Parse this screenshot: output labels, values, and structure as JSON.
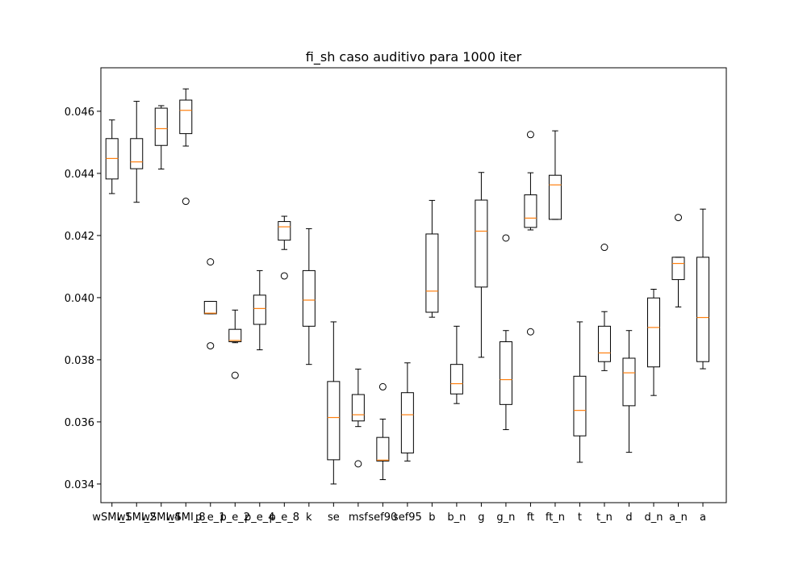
{
  "chart_data": {
    "type": "box",
    "title": "fi_sh caso auditivo para 1000 iter",
    "xlabel": "",
    "ylabel": "",
    "ylim": [
      0.0334,
      0.0474
    ],
    "yticks": [
      "0.034",
      "0.036",
      "0.038",
      "0.040",
      "0.042",
      "0.044",
      "0.046"
    ],
    "grid": false,
    "colors": {
      "box": "#000000",
      "median": "#ff7f0e",
      "whisker": "#000000"
    },
    "boxes": [
      {
        "label": "wSMI_1",
        "whislo": 0.04335,
        "q1": 0.04382,
        "med": 0.04448,
        "q3": 0.04512,
        "whishi": 0.04572,
        "fliers": []
      },
      {
        "label": "wSMI_2",
        "whislo": 0.04307,
        "q1": 0.04415,
        "med": 0.04437,
        "q3": 0.04512,
        "whishi": 0.04632,
        "fliers": []
      },
      {
        "label": "wSMI_4",
        "whislo": 0.04414,
        "q1": 0.0449,
        "med": 0.04544,
        "q3": 0.0461,
        "whishi": 0.04618,
        "fliers": []
      },
      {
        "label": "wSMI_8",
        "whislo": 0.04488,
        "q1": 0.04528,
        "med": 0.04603,
        "q3": 0.04636,
        "whishi": 0.04672,
        "fliers": [
          0.0431
        ]
      },
      {
        "label": "p_e_1",
        "whislo": 0.03948,
        "q1": 0.03948,
        "med": 0.0395,
        "q3": 0.03988,
        "whishi": 0.03988,
        "fliers": [
          0.04115,
          0.03845
        ]
      },
      {
        "label": "p_e_2",
        "whislo": 0.03855,
        "q1": 0.03858,
        "med": 0.03862,
        "q3": 0.03898,
        "whishi": 0.0396,
        "fliers": [
          0.0375
        ]
      },
      {
        "label": "p_e_4",
        "whislo": 0.03832,
        "q1": 0.03914,
        "med": 0.03965,
        "q3": 0.04008,
        "whishi": 0.04087,
        "fliers": []
      },
      {
        "label": "p_e_8",
        "whislo": 0.04155,
        "q1": 0.04185,
        "med": 0.04228,
        "q3": 0.04245,
        "whishi": 0.04262,
        "fliers": [
          0.0407
        ]
      },
      {
        "label": "k",
        "whislo": 0.03785,
        "q1": 0.03908,
        "med": 0.03992,
        "q3": 0.04087,
        "whishi": 0.04222,
        "fliers": []
      },
      {
        "label": "se",
        "whislo": 0.034,
        "q1": 0.03478,
        "med": 0.03614,
        "q3": 0.0373,
        "whishi": 0.03922,
        "fliers": []
      },
      {
        "label": "msf",
        "whislo": 0.03585,
        "q1": 0.03603,
        "med": 0.03623,
        "q3": 0.03688,
        "whishi": 0.0377,
        "fliers": [
          0.03465
        ]
      },
      {
        "label": "sef90",
        "whislo": 0.03414,
        "q1": 0.03474,
        "med": 0.03477,
        "q3": 0.0355,
        "whishi": 0.03609,
        "fliers": [
          0.03713
        ]
      },
      {
        "label": "sef95",
        "whislo": 0.03474,
        "q1": 0.035,
        "med": 0.03623,
        "q3": 0.03694,
        "whishi": 0.0379,
        "fliers": []
      },
      {
        "label": "b",
        "whislo": 0.03937,
        "q1": 0.03953,
        "med": 0.04021,
        "q3": 0.04205,
        "whishi": 0.04313,
        "fliers": []
      },
      {
        "label": "b_n",
        "whislo": 0.03659,
        "q1": 0.0369,
        "med": 0.03723,
        "q3": 0.03785,
        "whishi": 0.03908,
        "fliers": []
      },
      {
        "label": "g",
        "whislo": 0.03808,
        "q1": 0.04034,
        "med": 0.04214,
        "q3": 0.04314,
        "whishi": 0.04403,
        "fliers": []
      },
      {
        "label": "g_n",
        "whislo": 0.03575,
        "q1": 0.03656,
        "med": 0.03736,
        "q3": 0.03858,
        "whishi": 0.03894,
        "fliers": [
          0.04192
        ]
      },
      {
        "label": "ft",
        "whislo": 0.04218,
        "q1": 0.04226,
        "med": 0.04256,
        "q3": 0.04331,
        "whishi": 0.04402,
        "fliers": [
          0.04525,
          0.0389
        ]
      },
      {
        "label": "ft_n",
        "whislo": 0.04252,
        "q1": 0.04252,
        "med": 0.04363,
        "q3": 0.04394,
        "whishi": 0.04537,
        "fliers": []
      },
      {
        "label": "t",
        "whislo": 0.0347,
        "q1": 0.03555,
        "med": 0.03637,
        "q3": 0.03747,
        "whishi": 0.03922,
        "fliers": []
      },
      {
        "label": "t_n",
        "whislo": 0.03765,
        "q1": 0.03794,
        "med": 0.03822,
        "q3": 0.03908,
        "whishi": 0.03955,
        "fliers": [
          0.04162
        ]
      },
      {
        "label": "d",
        "whislo": 0.03502,
        "q1": 0.03652,
        "med": 0.03758,
        "q3": 0.03805,
        "whishi": 0.03894,
        "fliers": []
      },
      {
        "label": "d_n",
        "whislo": 0.03685,
        "q1": 0.03777,
        "med": 0.03904,
        "q3": 0.03999,
        "whishi": 0.04027,
        "fliers": []
      },
      {
        "label": "a_n",
        "whislo": 0.0397,
        "q1": 0.04058,
        "med": 0.0411,
        "q3": 0.0413,
        "whishi": 0.0413,
        "fliers": [
          0.04258
        ]
      },
      {
        "label": "a",
        "whislo": 0.03771,
        "q1": 0.03794,
        "med": 0.03936,
        "q3": 0.0413,
        "whishi": 0.04285,
        "fliers": []
      }
    ]
  }
}
